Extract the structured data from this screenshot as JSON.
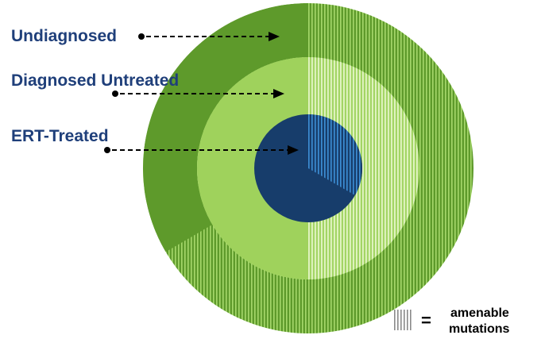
{
  "labels": {
    "undiagnosed": "Undiagnosed",
    "diagnosed_untreated": "Diagnosed Untreated",
    "ert_treated": "ERT-Treated"
  },
  "legend": {
    "equals": "=",
    "line1": "amenable",
    "line2": "mutations"
  },
  "colors": {
    "outer_ring": "#5e9a2b",
    "outer_ring_hatch": "#a6d86b",
    "middle_ring": "#9fd25c",
    "middle_ring_hatch": "#e4f5c6",
    "inner_core": "#173d6b",
    "inner_core_hatch": "#3d8fd6",
    "label_text": "#1f3f7a"
  }
}
